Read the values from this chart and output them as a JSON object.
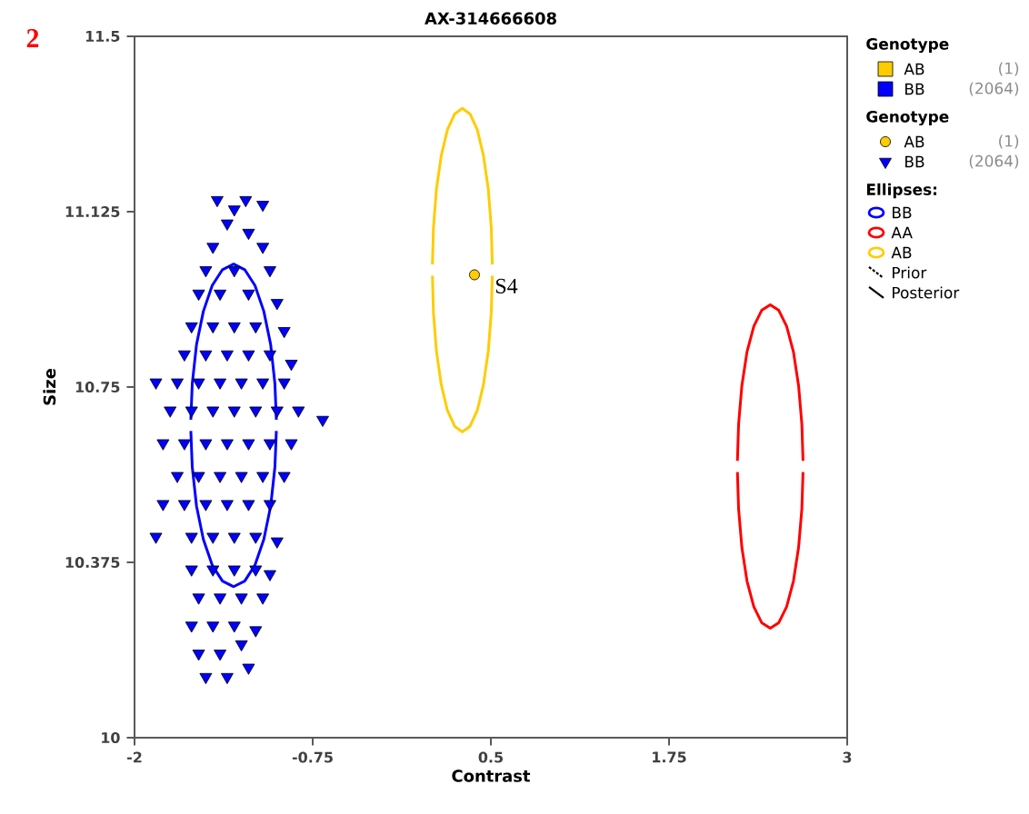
{
  "chart_data": {
    "type": "scatter",
    "title": "AX-314666608",
    "xlabel": "Contrast",
    "ylabel": "Size",
    "legend_title": "Genotype",
    "legend": "right",
    "xlim": [
      -2,
      3
    ],
    "ylim": [
      10,
      11.5
    ],
    "xticks": [
      -2,
      -0.75,
      0.5,
      1.75,
      3
    ],
    "yticks": [
      10,
      10.375,
      10.75,
      11.125,
      11.5
    ],
    "annotations": [
      "2",
      "(1)",
      "(2064)",
      "Ellipses:",
      "Prior",
      "Posterior",
      {
        "text": "S4",
        "x": 0.385,
        "y": 10.99
      }
    ],
    "series": [
      {
        "name": "AB",
        "marker": "circle",
        "color": "#ffcc00",
        "x": [
          0.385
        ],
        "values": [
          10.99
        ]
      },
      {
        "name": "BB",
        "marker": "triangle",
        "color": "#0000ff",
        "x": [
          -1.42,
          -1.22,
          -1.1,
          -1.3,
          -1.35,
          -1.2,
          -1.45,
          -1.1,
          -1.5,
          -1.3,
          -1.05,
          -1.55,
          -1.4,
          -1.2,
          -1.0,
          -1.6,
          -1.45,
          -1.3,
          -1.15,
          -0.95,
          -1.65,
          -1.5,
          -1.35,
          -1.2,
          -1.05,
          -0.9,
          -1.85,
          -1.7,
          -1.55,
          -1.4,
          -1.25,
          -1.1,
          -0.95,
          -1.75,
          -1.6,
          -1.45,
          -1.3,
          -1.15,
          -1.0,
          -0.85,
          -0.68,
          -1.8,
          -1.65,
          -1.5,
          -1.35,
          -1.2,
          -1.05,
          -0.9,
          -1.7,
          -1.55,
          -1.4,
          -1.25,
          -1.1,
          -0.95,
          -1.8,
          -1.65,
          -1.5,
          -1.35,
          -1.2,
          -1.05,
          -1.85,
          -1.6,
          -1.45,
          -1.3,
          -1.15,
          -1.0,
          -1.6,
          -1.45,
          -1.3,
          -1.15,
          -1.05,
          -1.55,
          -1.4,
          -1.25,
          -1.1,
          -1.6,
          -1.45,
          -1.3,
          -1.15,
          -1.55,
          -1.4,
          -1.25,
          -1.5,
          -1.35,
          -1.2
        ],
        "values": [
          11.15,
          11.15,
          11.14,
          11.13,
          11.1,
          11.08,
          11.05,
          11.05,
          11.0,
          11.0,
          11.0,
          10.95,
          10.95,
          10.95,
          10.93,
          10.88,
          10.88,
          10.88,
          10.88,
          10.87,
          10.82,
          10.82,
          10.82,
          10.82,
          10.82,
          10.8,
          10.76,
          10.76,
          10.76,
          10.76,
          10.76,
          10.76,
          10.76,
          10.7,
          10.7,
          10.7,
          10.7,
          10.7,
          10.7,
          10.7,
          10.68,
          10.63,
          10.63,
          10.63,
          10.63,
          10.63,
          10.63,
          10.63,
          10.56,
          10.56,
          10.56,
          10.56,
          10.56,
          10.56,
          10.5,
          10.5,
          10.5,
          10.5,
          10.5,
          10.5,
          10.43,
          10.43,
          10.43,
          10.43,
          10.43,
          10.42,
          10.36,
          10.36,
          10.36,
          10.36,
          10.35,
          10.3,
          10.3,
          10.3,
          10.3,
          10.24,
          10.24,
          10.24,
          10.23,
          10.18,
          10.18,
          10.2,
          10.13,
          10.13,
          10.15
        ]
      },
      {
        "name": "BB",
        "type": "line",
        "marker": "none",
        "color": "#0000ff",
        "x": [
          -1.005,
          -1.015,
          -1.045,
          -1.093,
          -1.155,
          -1.227,
          -1.305,
          -1.383,
          -1.455,
          -1.517,
          -1.565,
          -1.595,
          -1.605
        ],
        "values": [
          10.68,
          10.757,
          10.841,
          10.912,
          10.967,
          11.001,
          11.013,
          11.001,
          10.967,
          10.912,
          10.841,
          10.757,
          10.68
        ]
      },
      {
        "type": "line",
        "marker": "none",
        "color": "#0000ff",
        "x": [
          -1.605,
          -1.595,
          -1.565,
          -1.517,
          -1.455,
          -1.383,
          -1.305,
          -1.227,
          -1.155,
          -1.093,
          -1.045,
          -1.015,
          -1.005
        ],
        "values": [
          10.656,
          10.579,
          10.495,
          10.424,
          10.369,
          10.335,
          10.323,
          10.335,
          10.369,
          10.424,
          10.495,
          10.579,
          10.656
        ]
      },
      {
        "name": "AA",
        "type": "line",
        "marker": "none",
        "color": "#ff0000",
        "x": [
          2.69,
          2.682,
          2.659,
          2.623,
          2.575,
          2.52,
          2.46,
          2.4,
          2.345,
          2.297,
          2.261,
          2.238,
          2.23
        ],
        "values": [
          10.592,
          10.67,
          10.753,
          10.825,
          10.88,
          10.914,
          10.926,
          10.914,
          10.88,
          10.825,
          10.753,
          10.67,
          10.592
        ]
      },
      {
        "type": "line",
        "marker": "none",
        "color": "#ff0000",
        "x": [
          2.23,
          2.238,
          2.261,
          2.297,
          2.345,
          2.4,
          2.46,
          2.52,
          2.575,
          2.623,
          2.659,
          2.682,
          2.69
        ],
        "values": [
          10.568,
          10.49,
          10.407,
          10.335,
          10.28,
          10.246,
          10.234,
          10.246,
          10.28,
          10.335,
          10.407,
          10.49,
          10.568
        ]
      },
      {
        "name": "AB",
        "type": "line",
        "marker": "none",
        "color": "#ffcc00",
        "x": [
          0.51,
          0.503,
          0.482,
          0.448,
          0.405,
          0.354,
          0.3,
          0.246,
          0.195,
          0.152,
          0.118,
          0.097,
          0.09
        ],
        "values": [
          11.012,
          11.09,
          11.173,
          11.245,
          11.3,
          11.334,
          11.346,
          11.334,
          11.3,
          11.245,
          11.173,
          11.09,
          11.012
        ]
      },
      {
        "type": "line",
        "marker": "none",
        "color": "#ffcc00",
        "x": [
          0.09,
          0.097,
          0.118,
          0.152,
          0.195,
          0.246,
          0.3,
          0.354,
          0.405,
          0.448,
          0.482,
          0.503,
          0.51
        ],
        "values": [
          10.988,
          10.91,
          10.827,
          10.755,
          10.7,
          10.666,
          10.654,
          10.666,
          10.7,
          10.755,
          10.827,
          10.91,
          10.988
        ]
      }
    ]
  }
}
